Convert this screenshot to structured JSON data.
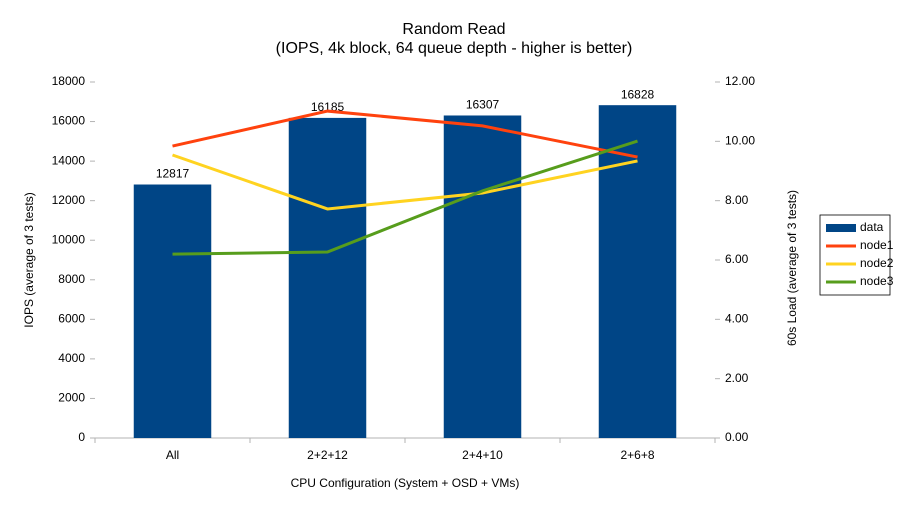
{
  "chart_data": {
    "type": "bar",
    "title": "Random Read",
    "subtitle": "(IOPS, 4k block, 64 queue depth - higher is better)",
    "x_label": "CPU Configuration (System + OSD + VMs)",
    "y_label": "IOPS (average of 3 tests)",
    "y2_label": "60s Load (average of 3 tests)",
    "categories": [
      "All",
      "2+2+12",
      "2+4+10",
      "2+6+8"
    ],
    "series": [
      {
        "name": "data",
        "type": "bar",
        "color": "#004586",
        "values": [
          12817,
          16185,
          16307,
          16828
        ]
      },
      {
        "name": "node1",
        "type": "line",
        "axis": "y2",
        "color": "#ff420e",
        "values": [
          9.84,
          11.02,
          10.52,
          9.47
        ]
      },
      {
        "name": "node2",
        "type": "line",
        "axis": "y2",
        "color": "#ffd320",
        "values": [
          9.54,
          7.72,
          8.26,
          9.34
        ]
      },
      {
        "name": "node3",
        "type": "line",
        "axis": "y2",
        "color": "#579d1c",
        "values": [
          6.2,
          6.27,
          8.33,
          10.01
        ]
      }
    ],
    "ylim": [
      0,
      18000
    ],
    "yticks": [
      0,
      2000,
      4000,
      6000,
      8000,
      10000,
      12000,
      14000,
      16000,
      18000
    ],
    "y2lim": [
      0,
      12
    ],
    "y2ticks": [
      {
        "value": 0,
        "label": "0.00"
      },
      {
        "value": 2,
        "label": "2.00"
      },
      {
        "value": 4,
        "label": "4.00"
      },
      {
        "value": 6,
        "label": "6.00"
      },
      {
        "value": 8,
        "label": "8.00"
      },
      {
        "value": 10,
        "label": "10.00"
      },
      {
        "value": 12,
        "label": "12.00"
      }
    ],
    "legend": "right",
    "data_labels": true
  }
}
